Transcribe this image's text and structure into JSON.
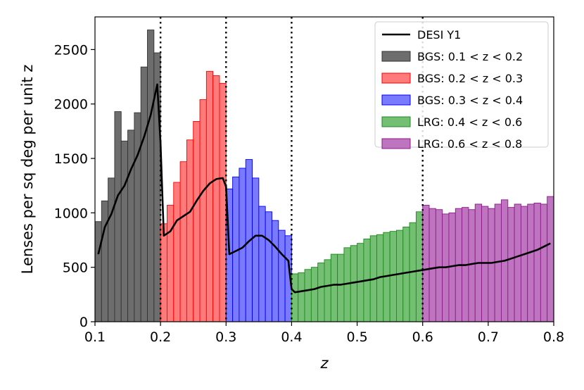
{
  "chart_data": {
    "type": "bar",
    "xlabel": "z",
    "ylabel": "Lenses per sq deg per unit z",
    "xlim": [
      0.1,
      0.8
    ],
    "ylim": [
      0,
      2800
    ],
    "xticks": [
      "0.1",
      "0.2",
      "0.3",
      "0.4",
      "0.5",
      "0.6",
      "0.7",
      "0.8"
    ],
    "yticks": [
      "0",
      "500",
      "1000",
      "1500",
      "2000",
      "2500"
    ],
    "bin_width": 0.01,
    "vertical_lines": [
      0.2,
      0.3,
      0.4,
      0.6
    ],
    "legend_position": "upper-right",
    "series": [
      {
        "name": "BGS: 0.1 < z < 0.2",
        "color": "#6d6d6d",
        "edge": "#333333",
        "x_start": 0.1,
        "values": [
          920,
          1110,
          1320,
          1930,
          1660,
          1760,
          1920,
          2340,
          2680,
          2470
        ]
      },
      {
        "name": "BGS: 0.2 < z < 0.3",
        "color": "#ff7a7a",
        "edge": "#ff0000",
        "x_start": 0.2,
        "values": [
          900,
          1070,
          1280,
          1470,
          1670,
          1840,
          2040,
          2300,
          2260,
          2190
        ]
      },
      {
        "name": "BGS: 0.3 < z < 0.4",
        "color": "#7a7aff",
        "edge": "#0000ff",
        "x_start": 0.3,
        "values": [
          1220,
          1330,
          1410,
          1490,
          1320,
          1060,
          1010,
          930,
          840,
          790
        ]
      },
      {
        "name": "LRG: 0.4 < z < 0.6",
        "color": "#74bf74",
        "edge": "#1a8c1a",
        "x_start": 0.4,
        "values": [
          440,
          450,
          480,
          500,
          540,
          570,
          620,
          620,
          680,
          700,
          720,
          760,
          790,
          800,
          820,
          830,
          840,
          870,
          910,
          1010
        ]
      },
      {
        "name": "LRG: 0.6 < z < 0.8",
        "color": "#bf74bf",
        "edge": "#8c1a8c",
        "x_start": 0.6,
        "values": [
          1070,
          1040,
          1030,
          990,
          1000,
          1040,
          1050,
          1030,
          1080,
          1060,
          1040,
          1080,
          1120,
          1050,
          1080,
          1060,
          1080,
          1090,
          1080,
          1150
        ]
      }
    ],
    "line": {
      "name": "DESI Y1",
      "color": "#000000",
      "x": [
        0.105,
        0.115,
        0.125,
        0.135,
        0.145,
        0.155,
        0.165,
        0.175,
        0.185,
        0.195,
        0.2,
        0.205,
        0.215,
        0.225,
        0.235,
        0.245,
        0.255,
        0.265,
        0.275,
        0.285,
        0.295,
        0.3,
        0.305,
        0.315,
        0.325,
        0.335,
        0.345,
        0.355,
        0.365,
        0.375,
        0.385,
        0.395,
        0.4,
        0.405,
        0.415,
        0.425,
        0.435,
        0.445,
        0.455,
        0.465,
        0.475,
        0.485,
        0.495,
        0.505,
        0.515,
        0.525,
        0.535,
        0.545,
        0.555,
        0.565,
        0.575,
        0.585,
        0.595,
        0.605,
        0.615,
        0.625,
        0.635,
        0.645,
        0.655,
        0.665,
        0.675,
        0.685,
        0.695,
        0.705,
        0.715,
        0.725,
        0.735,
        0.745,
        0.755,
        0.765,
        0.775,
        0.785,
        0.795
      ],
      "y": [
        620,
        870,
        990,
        1160,
        1250,
        1400,
        1530,
        1700,
        1900,
        2180,
        1650,
        790,
        830,
        930,
        970,
        1010,
        1110,
        1200,
        1270,
        1310,
        1320,
        1240,
        620,
        650,
        680,
        740,
        790,
        790,
        750,
        690,
        620,
        560,
        300,
        270,
        280,
        290,
        300,
        320,
        330,
        340,
        340,
        350,
        360,
        370,
        380,
        390,
        410,
        420,
        430,
        440,
        450,
        460,
        470,
        480,
        490,
        500,
        500,
        510,
        520,
        520,
        530,
        540,
        540,
        540,
        550,
        560,
        580,
        600,
        620,
        640,
        660,
        690,
        720
      ]
    }
  }
}
